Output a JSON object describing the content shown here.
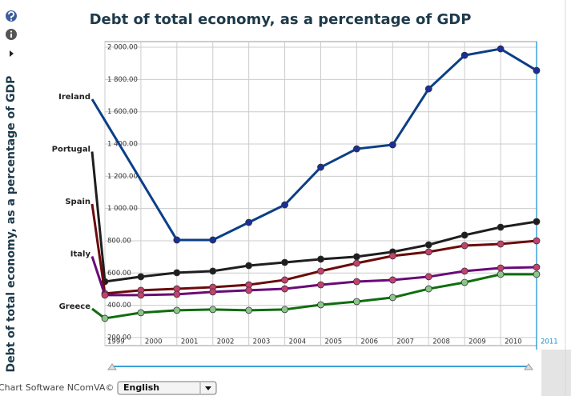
{
  "chart_data": {
    "type": "line",
    "title": "Debt of total economy, as a percentage of GDP",
    "y_label": "Debt of total economy, as a percentage of GDP",
    "categories": [
      "1999",
      "2000",
      "2001",
      "2002",
      "2003",
      "2004",
      "2005",
      "2006",
      "2007",
      "2008",
      "2009",
      "2010",
      "2011"
    ],
    "selected_index": 12,
    "ylim": [
      150,
      2035
    ],
    "yticks": [
      {
        "value": 200,
        "label": "200.00"
      },
      {
        "value": 400,
        "label": "400.00"
      },
      {
        "value": 600,
        "label": "600.00"
      },
      {
        "value": 800,
        "label": "800.00"
      },
      {
        "value": 1000,
        "label": "1 000.00"
      },
      {
        "value": 1200,
        "label": "1 200.00"
      },
      {
        "value": 1400,
        "label": "1 400.00"
      },
      {
        "value": 1600,
        "label": "1 600.00"
      },
      {
        "value": 1800,
        "label": "1 800.00"
      },
      {
        "value": 2000,
        "label": "2 000.00"
      }
    ],
    "grid": true,
    "series": [
      {
        "name": "Ireland",
        "color": "#0b3f86",
        "marker_color": "#1a2f9a",
        "values": [
          null,
          null,
          805,
          805,
          914,
          1023,
          1256,
          1370,
          1395,
          1742,
          1950,
          1990,
          1856
        ]
      },
      {
        "name": "Portugal",
        "color": "#1e1e1e",
        "marker_color": "#1e1e1e",
        "values": [
          547,
          577,
          602,
          612,
          646,
          666,
          686,
          701,
          731,
          775,
          835,
          884,
          919
        ]
      },
      {
        "name": "Spain",
        "color": "#6b0a0a",
        "marker_color": "#c2426e",
        "values": [
          473,
          493,
          502,
          512,
          527,
          557,
          612,
          661,
          706,
          731,
          770,
          780,
          800
        ]
      },
      {
        "name": "Italy",
        "color": "#6a0a78",
        "marker_color": "#c2426e",
        "values": [
          463,
          463,
          468,
          483,
          493,
          502,
          527,
          547,
          557,
          577,
          612,
          631,
          636
        ]
      },
      {
        "name": "Greece",
        "color": "#0f6d0f",
        "marker_color": "#8cc48c",
        "values": [
          319,
          354,
          369,
          374,
          369,
          374,
          403,
          423,
          448,
          502,
          542,
          592,
          592
        ]
      }
    ]
  },
  "footer": {
    "credit": "Chart Software NComVA©",
    "language": "English"
  }
}
